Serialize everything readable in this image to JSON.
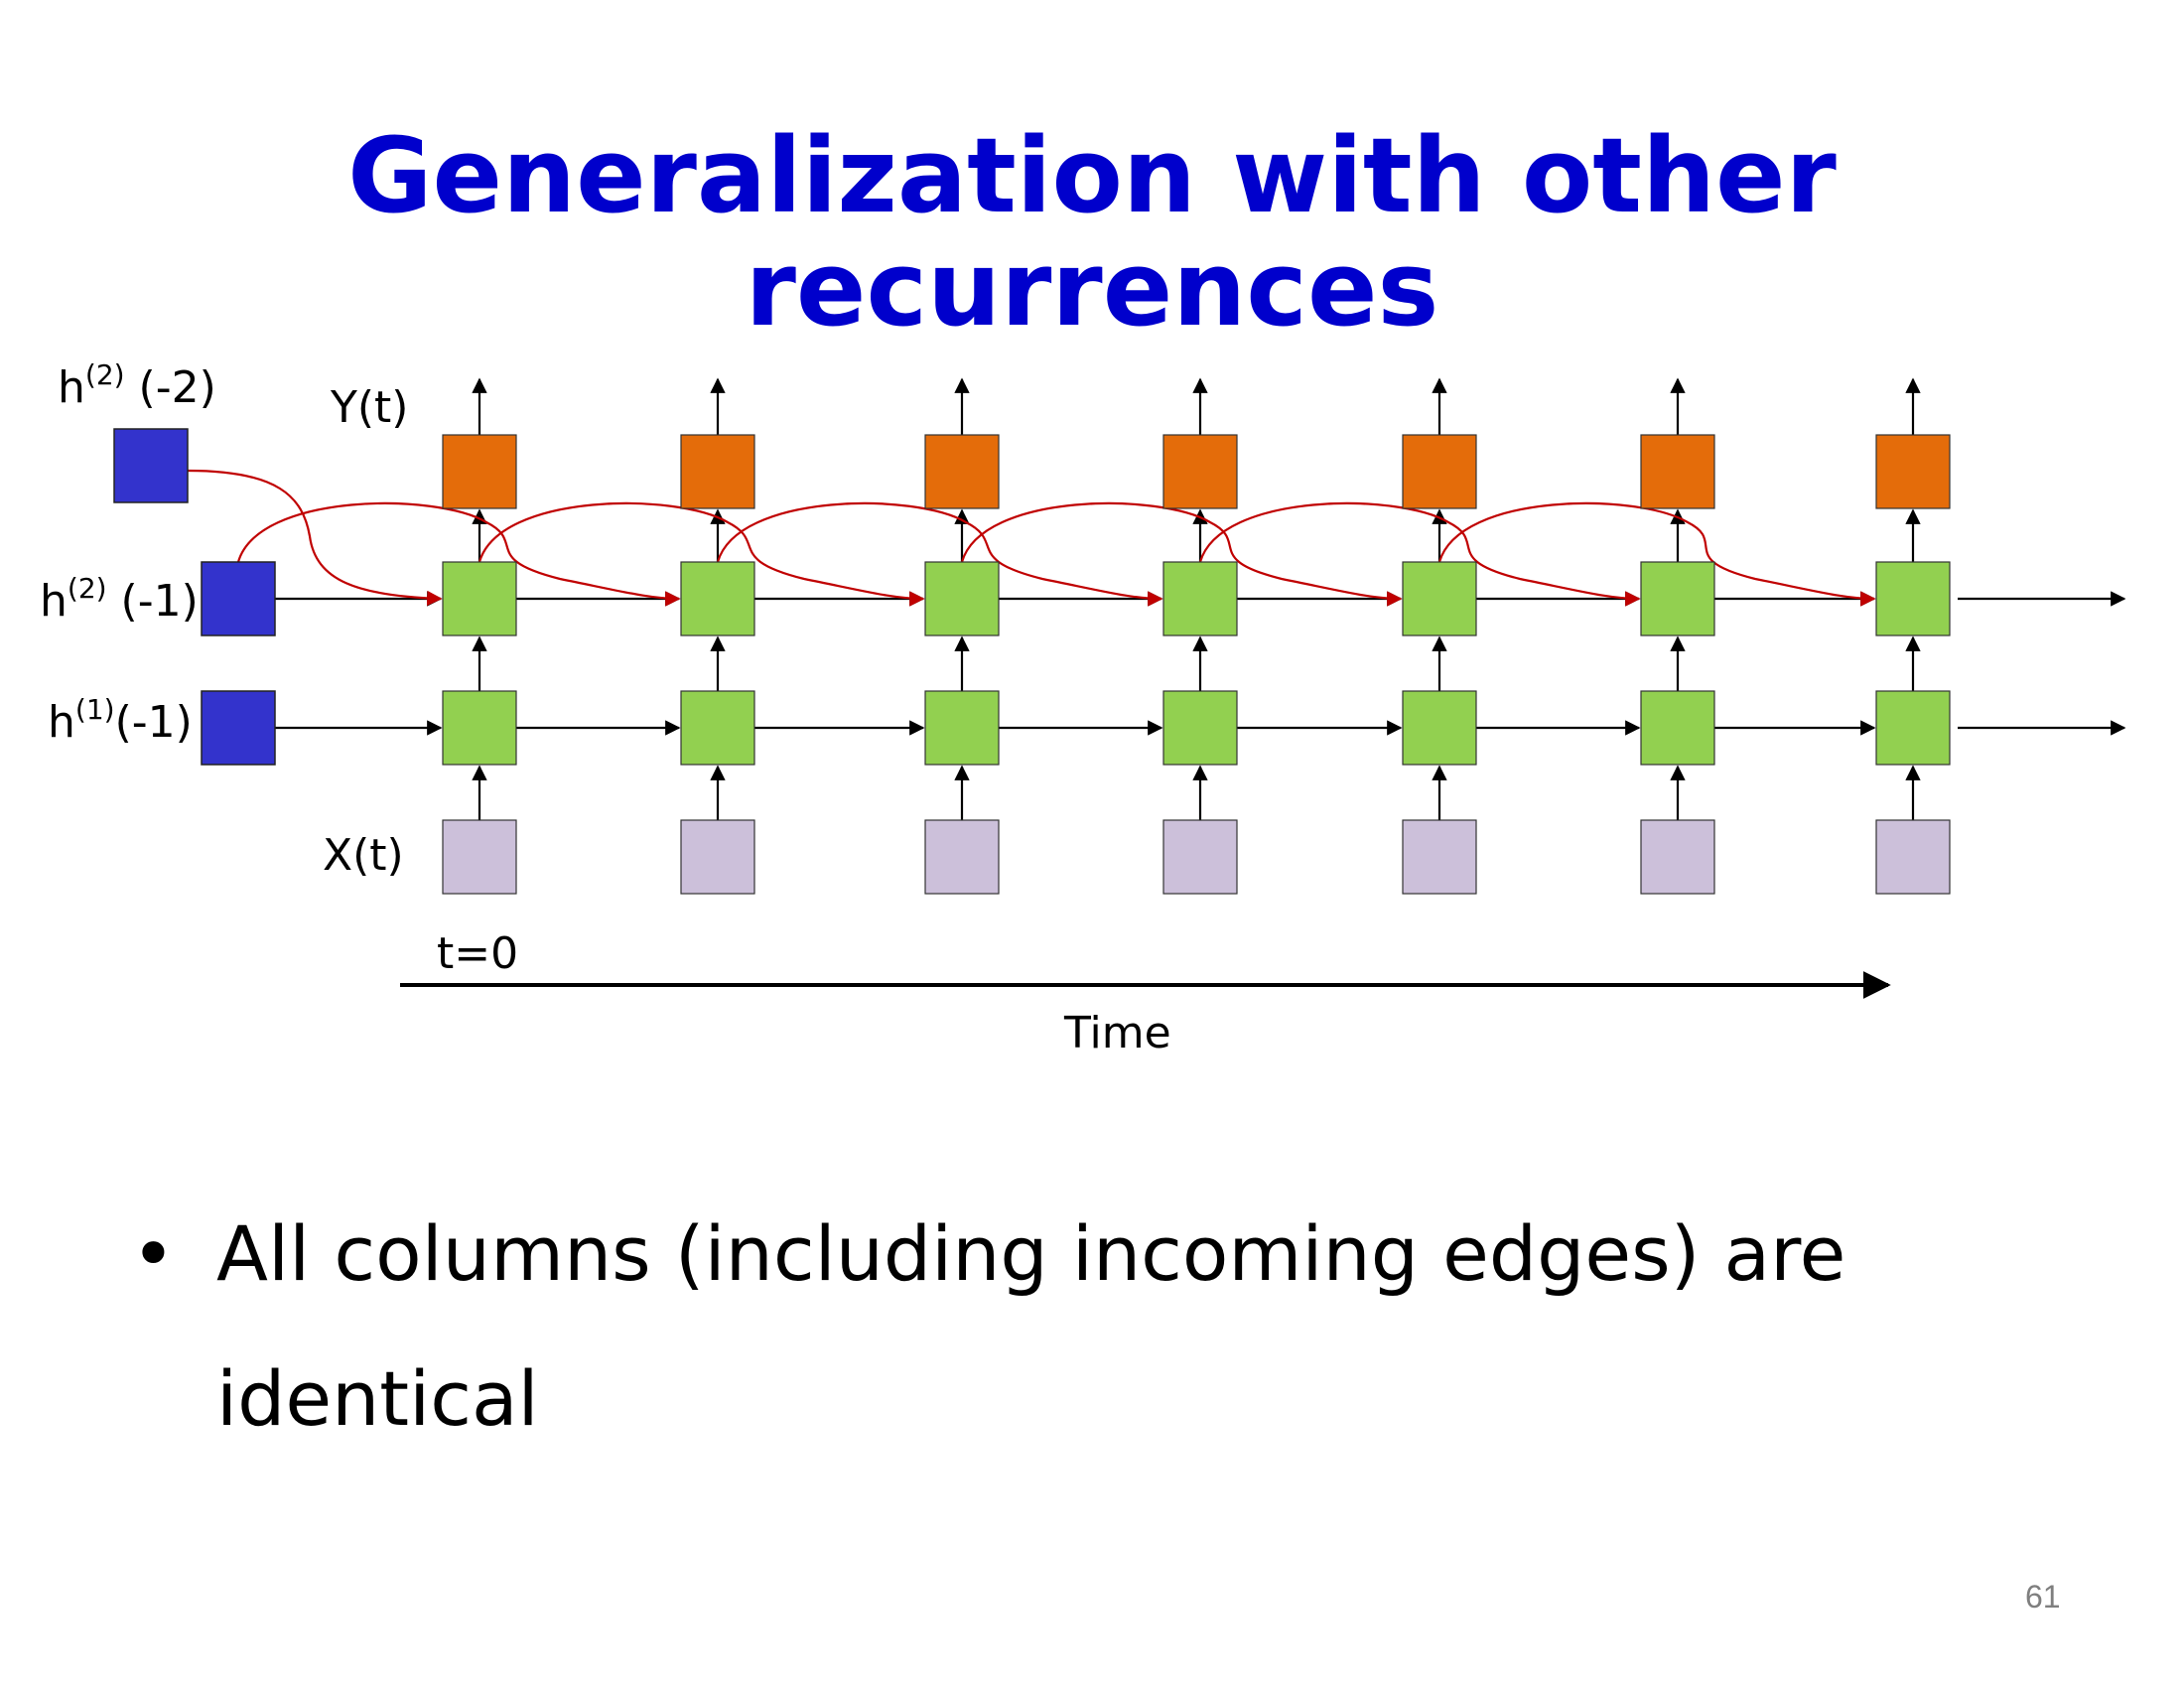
{
  "title": "Generalization with other recurrences",
  "diagram": {
    "labels": {
      "h2_minus2": {
        "base": "h",
        "sup": "(2)",
        "rest": " (-2)"
      },
      "h2_minus1": {
        "base": "h",
        "sup": "(2)",
        "rest": " (-1)"
      },
      "h1_minus1": {
        "base": "h",
        "sup": "(1)",
        "rest": "(-1)"
      },
      "output": "Y(t)",
      "input": "X(t)",
      "t0": "t=0",
      "time_axis": "Time"
    },
    "columns": 7,
    "colors": {
      "init_state": "#3333cc",
      "output": "#e46c0a",
      "hidden": "#92d050",
      "input": "#ccc0da",
      "recurrent_skip": "#c00000",
      "edge": "#000000"
    }
  },
  "bullets": [
    "All columns (including incoming edges) are identical"
  ],
  "page_number": "61"
}
